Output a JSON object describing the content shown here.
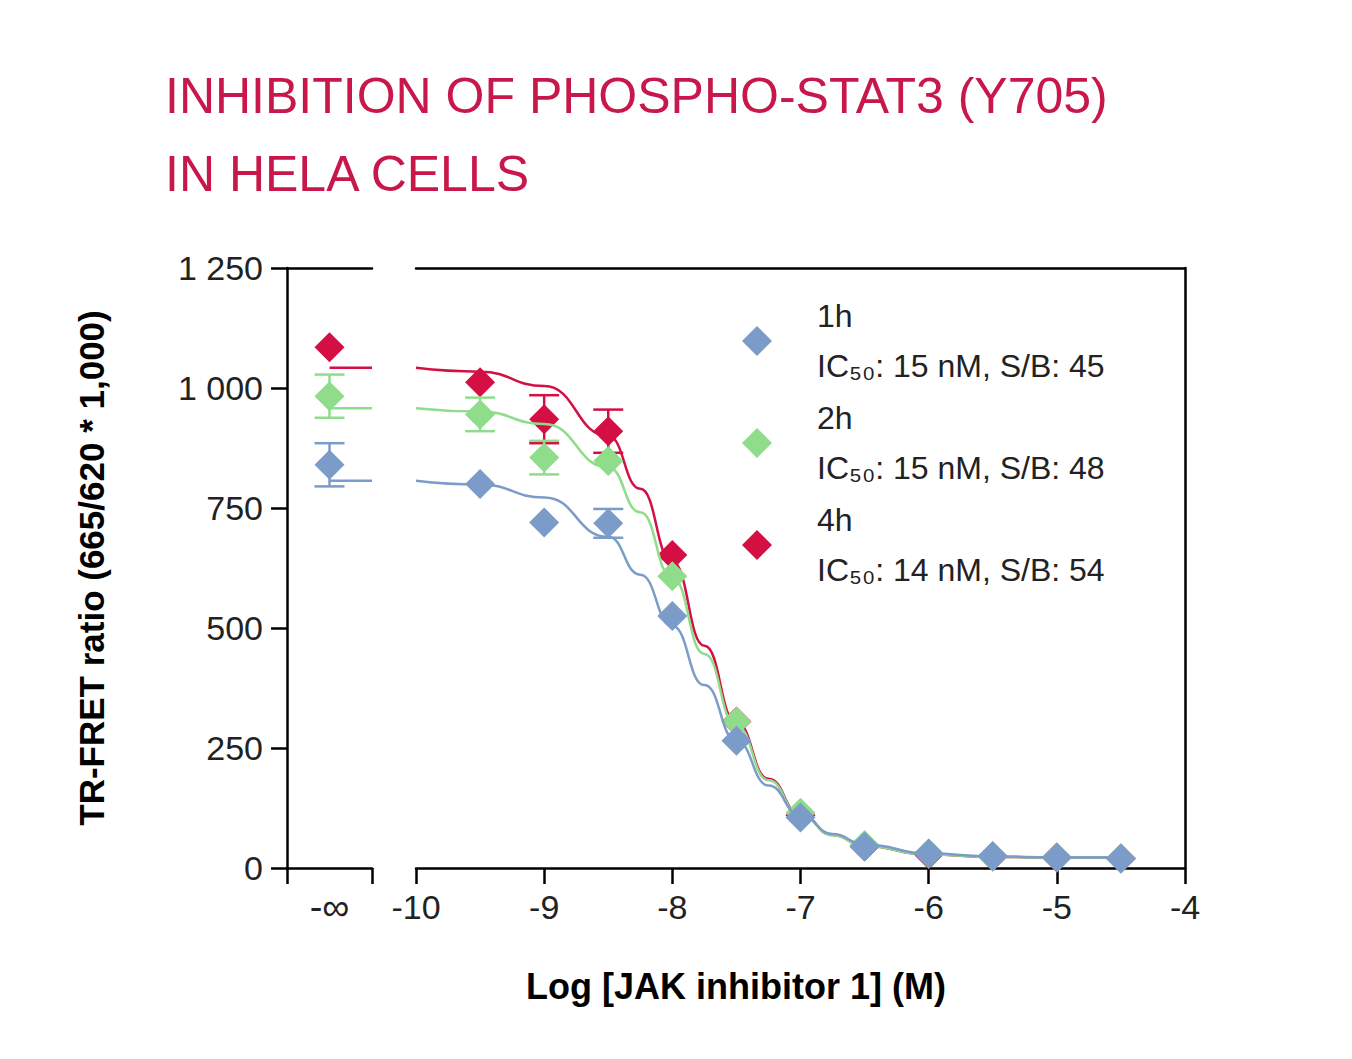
{
  "chart_data": {
    "type": "scatter",
    "title": "INHIBITION OF PHOSPHO-STAT3 (Y705)\nIN HELA CELLS",
    "x_label": "Log [JAK inhibitor 1] (M)",
    "y_label": "TR-FRET ratio (665/620 * 1,000)",
    "marker": "diamond",
    "grid": false,
    "data_labels": false,
    "legend": "upper right",
    "xlim": [
      -10,
      -4
    ],
    "xticks": [
      -10,
      -9,
      -8,
      -7,
      -6,
      -5,
      -4
    ],
    "ylim": [
      0,
      1250
    ],
    "yticks": [
      0,
      250,
      500,
      750,
      {
        "value": 1000,
        "label": "1 000"
      },
      {
        "value": 1250,
        "label": "1 250"
      }
    ],
    "control": {
      "label": "-∞"
    },
    "x": [
      -9.5,
      -9,
      -8.5,
      -8,
      -7.5,
      -7,
      -6.5,
      -6,
      -5.5,
      -5,
      -4.5
    ],
    "fit_x": [
      -10,
      -9.5,
      -9,
      -8.5,
      -8.25,
      -8,
      -7.75,
      -7.5,
      -7.25,
      -7,
      -6.75,
      -6.5,
      -6,
      -5.5,
      -5,
      -4.5
    ],
    "series": [
      {
        "name": "1h",
        "note": "IC₅₀: 15 nM, S/B: 45",
        "color": "#7b9cc8",
        "control_value": 840,
        "control_error": 45,
        "values": [
          800,
          720,
          718,
          525,
          265,
          105,
          45,
          30,
          25,
          22,
          20
        ],
        "errors": [
          null,
          null,
          30,
          null,
          null,
          null,
          null,
          null,
          null,
          null,
          null
        ],
        "fit": [
          807,
          799,
          772,
          690,
          611,
          504,
          381,
          265,
          172,
          110,
          71,
          49,
          30,
          24,
          22,
          22
        ]
      },
      {
        "name": "2h",
        "note": "IC₅₀: 15 nM, S/B: 48",
        "color": "#8fdc8a",
        "control_value": 983,
        "control_error": 45,
        "values": [
          945,
          855,
          848,
          608,
          305,
          115,
          48,
          30,
          24,
          22,
          20
        ],
        "errors": [
          35,
          35,
          null,
          null,
          null,
          null,
          null,
          null,
          null,
          null,
          null
        ],
        "fit": [
          958,
          951,
          925,
          835,
          741,
          605,
          446,
          296,
          183,
          110,
          68,
          46,
          28,
          23,
          22,
          22
        ]
      },
      {
        "name": "4h",
        "note": "IC₅₀: 14 nM, S/B: 54",
        "color": "#d40f44",
        "control_value": 1085,
        "control_error": null,
        "values": [
          1012,
          935,
          910,
          652,
          305,
          110,
          45,
          28,
          24,
          22,
          20
        ],
        "errors": [
          null,
          50,
          45,
          null,
          null,
          null,
          null,
          null,
          null,
          null,
          null
        ],
        "fit": [
          1042,
          1034,
          1004,
          900,
          790,
          638,
          463,
          303,
          186,
          111,
          69,
          46,
          28,
          23,
          22,
          22
        ]
      }
    ]
  }
}
